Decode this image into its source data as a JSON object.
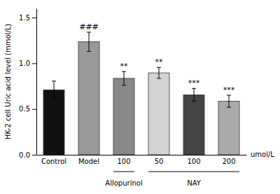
{
  "chart_data": {
    "type": "bar",
    "categories": [
      "Control",
      "Model",
      "100",
      "50",
      "100",
      "200"
    ],
    "values": [
      0.71,
      1.235,
      0.835,
      0.895,
      0.655,
      0.585
    ],
    "errors": [
      0.095,
      0.105,
      0.075,
      0.06,
      0.07,
      0.065
    ],
    "colors": [
      "#111111",
      "#999999",
      "#888888",
      "#d3d3d3",
      "#444444",
      "#aaaaaa"
    ],
    "significance": [
      null,
      "###",
      "**",
      "**",
      "***",
      "***"
    ],
    "category_groups": [
      null,
      null,
      "Allopurinol",
      "NAY",
      "NAY",
      "NAY"
    ],
    "ylabel": "HK-2 cell Uric acid level (mmol/L)",
    "xlabel": "umol/L",
    "ylim": [
      0,
      1.6
    ],
    "yticks": [
      {
        "value": 0,
        "label": "0.0"
      },
      0.5,
      {
        "value": 1,
        "label": "1.0"
      },
      1.5
    ]
  }
}
